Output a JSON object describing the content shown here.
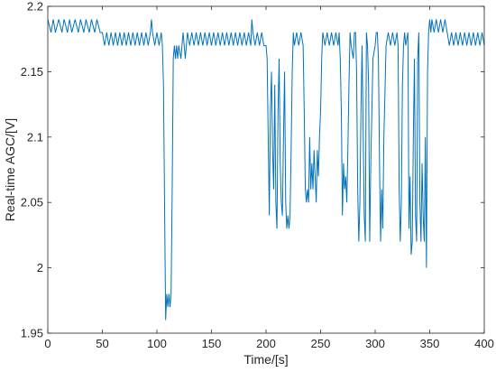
{
  "chart_data": {
    "type": "line",
    "title": "",
    "xlabel": "Time/[s]",
    "ylabel": "Real-time AGC/[V]",
    "xlim": [
      0,
      400
    ],
    "ylim": [
      1.95,
      2.2
    ],
    "xticks": [
      0,
      50,
      100,
      150,
      200,
      250,
      300,
      350,
      400
    ],
    "xtick_labels": [
      "0",
      "50",
      "100",
      "150",
      "200",
      "250",
      "300",
      "350",
      "400"
    ],
    "yticks": [
      1.95,
      2,
      2.05,
      2.1,
      2.15,
      2.2
    ],
    "ytick_labels": [
      "1.95",
      "2",
      "2.05",
      "2.1",
      "2.15",
      "2.2"
    ],
    "grid": false,
    "legend": "none",
    "line_color": "#0072BD",
    "series": [
      {
        "x": [
          0,
          3,
          5,
          7,
          10,
          13,
          15,
          18,
          20,
          22,
          25,
          28,
          30,
          33,
          35,
          38,
          40,
          43,
          45,
          48,
          50,
          52,
          54,
          56,
          58,
          60,
          62,
          64,
          66,
          68,
          70,
          72,
          74,
          76,
          78,
          80,
          82,
          84,
          86,
          88,
          90,
          92,
          94,
          95,
          96,
          98,
          100,
          102,
          104,
          105,
          106,
          107,
          108,
          109,
          110,
          111,
          112,
          113,
          114,
          115,
          116,
          117,
          118,
          119,
          120,
          122,
          124,
          126,
          128,
          130,
          132,
          134,
          136,
          138,
          140,
          142,
          144,
          146,
          148,
          150,
          152,
          154,
          156,
          158,
          160,
          162,
          164,
          166,
          168,
          170,
          172,
          174,
          176,
          178,
          180,
          182,
          184,
          186,
          187,
          188,
          190,
          192,
          194,
          196,
          198,
          200,
          201,
          202,
          203,
          204,
          205,
          206,
          207,
          208,
          209,
          210,
          211,
          212,
          213,
          214,
          215,
          216,
          217,
          218,
          219,
          220,
          221,
          222,
          223,
          224,
          225,
          226,
          228,
          230,
          232,
          234,
          235,
          236,
          237,
          238,
          239,
          240,
          241,
          242,
          243,
          244,
          245,
          246,
          247,
          248,
          249,
          250,
          251,
          252,
          254,
          256,
          258,
          260,
          262,
          264,
          266,
          267,
          268,
          269,
          270,
          271,
          272,
          273,
          274,
          275,
          276,
          277,
          278,
          280,
          281,
          282,
          283,
          284,
          285,
          286,
          287,
          288,
          290,
          291,
          292,
          293,
          294,
          295,
          296,
          298,
          300,
          301,
          302,
          303,
          304,
          305,
          306,
          307,
          308,
          310,
          312,
          314,
          316,
          318,
          320,
          321,
          322,
          323,
          324,
          325,
          326,
          327,
          328,
          330,
          331,
          332,
          333,
          334,
          335,
          336,
          337,
          338,
          339,
          340,
          341,
          342,
          343,
          344,
          345,
          346,
          347,
          348,
          349,
          350,
          351,
          352,
          354,
          356,
          358,
          360,
          362,
          364,
          366,
          368,
          370,
          372,
          374,
          376,
          378,
          380,
          382,
          384,
          386,
          388,
          390,
          392,
          394,
          396,
          398,
          400
        ],
        "y": [
          2.19,
          2.18,
          2.19,
          2.18,
          2.19,
          2.18,
          2.19,
          2.18,
          2.19,
          2.18,
          2.19,
          2.18,
          2.19,
          2.18,
          2.19,
          2.18,
          2.19,
          2.18,
          2.19,
          2.18,
          2.18,
          2.17,
          2.18,
          2.17,
          2.18,
          2.17,
          2.18,
          2.17,
          2.18,
          2.17,
          2.18,
          2.17,
          2.18,
          2.17,
          2.18,
          2.17,
          2.18,
          2.17,
          2.18,
          2.17,
          2.18,
          2.17,
          2.18,
          2.19,
          2.18,
          2.17,
          2.18,
          2.17,
          2.18,
          2.17,
          2.14,
          2.05,
          1.96,
          1.98,
          1.97,
          1.98,
          1.97,
          1.98,
          2.06,
          2.16,
          2.17,
          2.16,
          2.17,
          2.16,
          2.17,
          2.16,
          2.18,
          2.16,
          2.18,
          2.17,
          2.18,
          2.17,
          2.18,
          2.17,
          2.18,
          2.17,
          2.18,
          2.17,
          2.18,
          2.17,
          2.18,
          2.17,
          2.18,
          2.17,
          2.18,
          2.17,
          2.18,
          2.17,
          2.18,
          2.17,
          2.18,
          2.17,
          2.18,
          2.17,
          2.18,
          2.17,
          2.18,
          2.17,
          2.19,
          2.18,
          2.17,
          2.18,
          2.17,
          2.18,
          2.17,
          2.17,
          2.16,
          2.1,
          2.04,
          2.12,
          2.15,
          2.09,
          2.06,
          2.14,
          2.05,
          2.03,
          2.12,
          2.16,
          2.08,
          2.05,
          2.04,
          2.1,
          2.15,
          2.05,
          2.03,
          2.04,
          2.03,
          2.04,
          2.09,
          2.15,
          2.18,
          2.17,
          2.18,
          2.17,
          2.18,
          2.17,
          2.12,
          2.06,
          2.05,
          2.06,
          2.05,
          2.1,
          2.06,
          2.08,
          2.06,
          2.09,
          2.07,
          2.05,
          2.09,
          2.07,
          2.1,
          2.12,
          2.16,
          2.18,
          2.17,
          2.18,
          2.17,
          2.18,
          2.17,
          2.18,
          2.17,
          2.18,
          2.16,
          2.12,
          2.04,
          2.08,
          2.06,
          2.07,
          2.05,
          2.09,
          2.14,
          2.18,
          2.17,
          2.16,
          2.18,
          2.18,
          2.15,
          2.06,
          2.02,
          2.05,
          2.12,
          2.17,
          2.04,
          2.02,
          2.18,
          2.17,
          2.14,
          2.02,
          2.08,
          2.16,
          2.17,
          2.18,
          2.18,
          2.16,
          2.08,
          2.02,
          2.06,
          2.03,
          2.1,
          2.17,
          2.18,
          2.17,
          2.18,
          2.17,
          2.18,
          2.17,
          2.06,
          2.02,
          2.05,
          2.14,
          2.17,
          2.18,
          2.17,
          2.18,
          2.03,
          2.07,
          2.01,
          2.02,
          2.1,
          2.16,
          2.04,
          2.02,
          2.16,
          2.18,
          2.05,
          2.02,
          2.08,
          2.04,
          2.02,
          2.1,
          2.0,
          2.15,
          2.18,
          2.19,
          2.18,
          2.19,
          2.18,
          2.19,
          2.18,
          2.19,
          2.18,
          2.19,
          2.18,
          2.17,
          2.18,
          2.17,
          2.18,
          2.17,
          2.18,
          2.17,
          2.18,
          2.17,
          2.18,
          2.17,
          2.18,
          2.17,
          2.18,
          2.17,
          2.18,
          2.17
        ]
      }
    ]
  }
}
